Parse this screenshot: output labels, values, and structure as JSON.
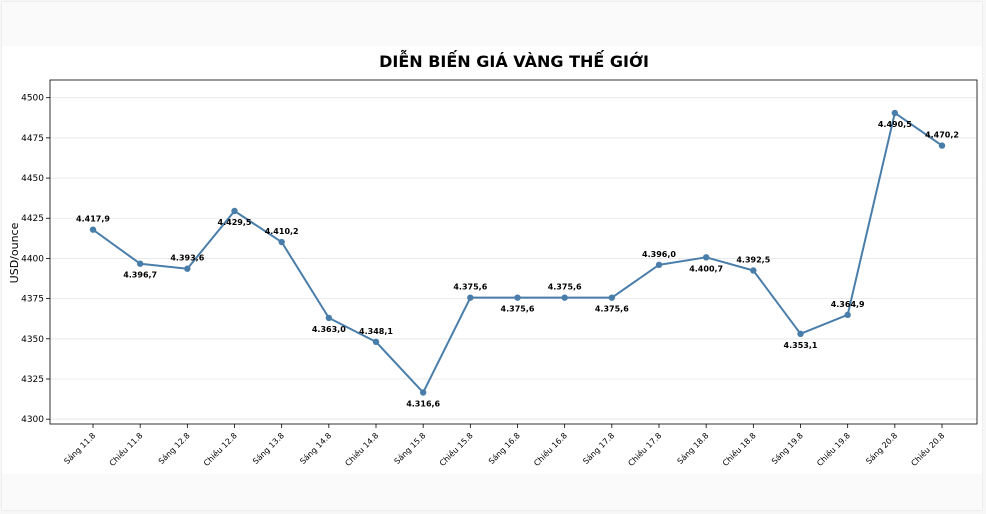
{
  "chart_data": {
    "type": "line",
    "title": "DIỄN BIẾN GIÁ VÀNG THẾ GIỚI",
    "xlabel": "",
    "ylabel": "USD/ounce",
    "ylim": [
      4297,
      4511
    ],
    "yticks": [
      4300,
      4325,
      4350,
      4375,
      4400,
      4425,
      4450,
      4475,
      4500
    ],
    "grid": true,
    "categories": [
      "Sáng 11.8",
      "Chiều 11.8",
      "Sáng 12.8",
      "Chiều 12.8",
      "Sáng 13.8",
      "Sáng 14.8",
      "Chiều 14.8",
      "Sáng 15.8",
      "Chiều 15.8",
      "Sáng 16.8",
      "Chiều 16.8",
      "Sáng 17.8",
      "Chiều 17.8",
      "Sáng 18.8",
      "Chiều 18.8",
      "Sáng 19.8",
      "Chiều 19.8",
      "Sáng 20.8",
      "Chiều 20.8"
    ],
    "values": [
      4417.9,
      4396.7,
      4393.6,
      4429.5,
      4410.2,
      4363.0,
      4348.1,
      4316.6,
      4375.6,
      4375.6,
      4375.6,
      4375.6,
      4396.0,
      4400.7,
      4392.5,
      4353.1,
      4364.9,
      4490.5,
      4470.2
    ],
    "labels": [
      "4.417,9",
      "4.396,7",
      "4.393,6",
      "4.429,5",
      "4.410,2",
      "4.363,0",
      "4.348,1",
      "4.316,6",
      "4.375,6",
      "4.375,6",
      "4.375,6",
      "4.375,6",
      "4.396,0",
      "4.400,7",
      "4.392,5",
      "4.353,1",
      "4.364,9",
      "4.490,5",
      "4.470,2"
    ],
    "label_positions": [
      "above",
      "below",
      "above",
      "below",
      "above",
      "below",
      "above",
      "below",
      "above",
      "below",
      "above",
      "below",
      "above",
      "below",
      "above",
      "below",
      "above",
      "below",
      "above"
    ],
    "color": "#4a7eaa"
  }
}
